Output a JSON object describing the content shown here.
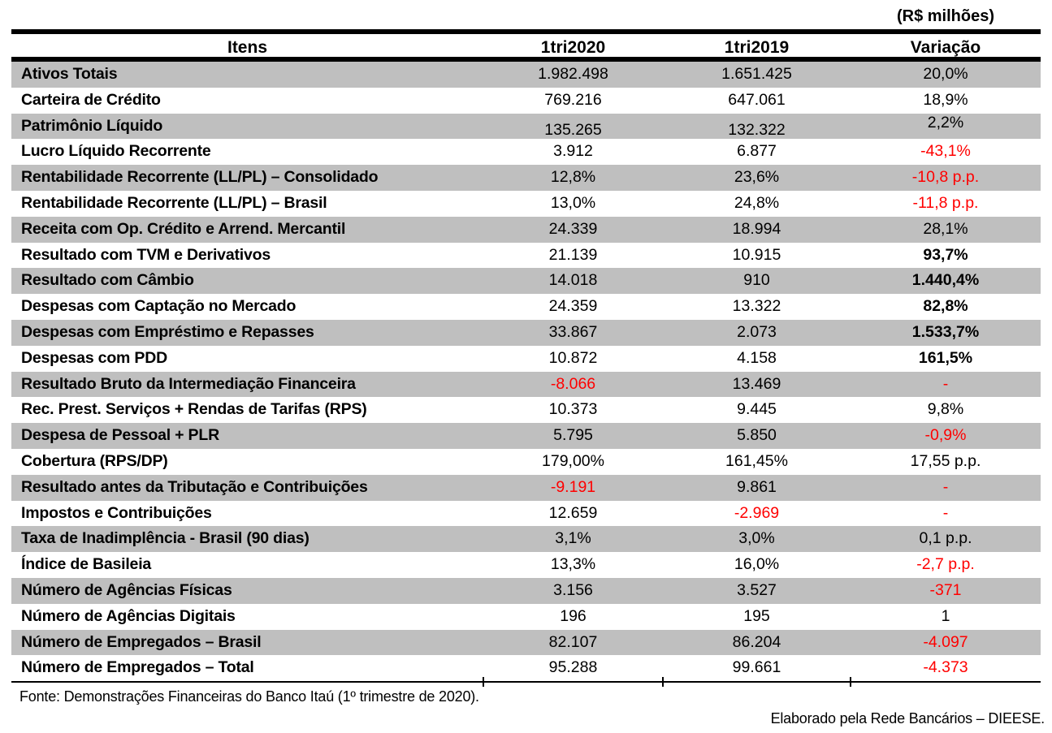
{
  "unit_label": "(R$ milhões)",
  "columns": [
    "Itens",
    "1tri2020",
    "1tri2019",
    "Variação"
  ],
  "colors": {
    "row_shade": "#bfbfbf",
    "negative_red": "#ff0000",
    "text": "#000000"
  },
  "rows": [
    {
      "label": "Ativos Totais",
      "v1": "1.982.498",
      "v2": "1.651.425",
      "var": "20,0%",
      "v1_red": false,
      "v2_red": false,
      "var_red": false,
      "var_bold": false,
      "shaded": true,
      "offset": false
    },
    {
      "label": "Carteira de Crédito",
      "v1": "769.216",
      "v2": "647.061",
      "var": "18,9%",
      "v1_red": false,
      "v2_red": false,
      "var_red": false,
      "var_bold": false,
      "shaded": false,
      "offset": false
    },
    {
      "label": "Patrimônio Líquido",
      "v1": "135.265",
      "v2": "132.322",
      "var": "2,2%",
      "v1_red": false,
      "v2_red": false,
      "var_red": false,
      "var_bold": false,
      "shaded": true,
      "offset": true
    },
    {
      "label": "Lucro Líquido Recorrente",
      "v1": "3.912",
      "v2": "6.877",
      "var": "-43,1%",
      "v1_red": false,
      "v2_red": false,
      "var_red": true,
      "var_bold": false,
      "shaded": false,
      "offset": false
    },
    {
      "label": "Rentabilidade Recorrente (LL/PL) – Consolidado",
      "v1": "12,8%",
      "v2": "23,6%",
      "var": "-10,8 p.p.",
      "v1_red": false,
      "v2_red": false,
      "var_red": true,
      "var_bold": false,
      "shaded": true,
      "offset": false
    },
    {
      "label": "Rentabilidade Recorrente (LL/PL) – Brasil",
      "v1": "13,0%",
      "v2": "24,8%",
      "var": "-11,8 p.p.",
      "v1_red": false,
      "v2_red": false,
      "var_red": true,
      "var_bold": false,
      "shaded": false,
      "offset": false
    },
    {
      "label": "Receita com Op. Crédito e Arrend. Mercantil",
      "v1": "24.339",
      "v2": "18.994",
      "var": "28,1%",
      "v1_red": false,
      "v2_red": false,
      "var_red": false,
      "var_bold": false,
      "shaded": true,
      "offset": false
    },
    {
      "label": "Resultado com TVM e Derivativos",
      "v1": "21.139",
      "v2": "10.915",
      "var": "93,7%",
      "v1_red": false,
      "v2_red": false,
      "var_red": false,
      "var_bold": true,
      "shaded": false,
      "offset": false
    },
    {
      "label": "Resultado com Câmbio",
      "v1": "14.018",
      "v2": "910",
      "var": "1.440,4%",
      "v1_red": false,
      "v2_red": false,
      "var_red": false,
      "var_bold": true,
      "shaded": true,
      "offset": false
    },
    {
      "label": "Despesas com Captação no Mercado",
      "v1": "24.359",
      "v2": "13.322",
      "var": "82,8%",
      "v1_red": false,
      "v2_red": false,
      "var_red": false,
      "var_bold": true,
      "shaded": false,
      "offset": false
    },
    {
      "label": "Despesas com Empréstimo e Repasses",
      "v1": "33.867",
      "v2": "2.073",
      "var": "1.533,7%",
      "v1_red": false,
      "v2_red": false,
      "var_red": false,
      "var_bold": true,
      "shaded": true,
      "offset": false
    },
    {
      "label": "Despesas com PDD",
      "v1": "10.872",
      "v2": "4.158",
      "var": "161,5%",
      "v1_red": false,
      "v2_red": false,
      "var_red": false,
      "var_bold": true,
      "shaded": false,
      "offset": false
    },
    {
      "label": "Resultado Bruto da Intermediação Financeira",
      "v1": "-8.066",
      "v2": "13.469",
      "var": "-",
      "v1_red": true,
      "v2_red": false,
      "var_red": true,
      "var_bold": false,
      "shaded": true,
      "offset": false
    },
    {
      "label": "Rec. Prest. Serviços + Rendas de Tarifas (RPS)",
      "v1": "10.373",
      "v2": "9.445",
      "var": "9,8%",
      "v1_red": false,
      "v2_red": false,
      "var_red": false,
      "var_bold": false,
      "shaded": false,
      "offset": false
    },
    {
      "label": "Despesa de Pessoal + PLR",
      "v1": "5.795",
      "v2": "5.850",
      "var": "-0,9%",
      "v1_red": false,
      "v2_red": false,
      "var_red": true,
      "var_bold": false,
      "shaded": true,
      "offset": false
    },
    {
      "label": "Cobertura (RPS/DP)",
      "v1": "179,00%",
      "v2": "161,45%",
      "var": "17,55 p.p.",
      "v1_red": false,
      "v2_red": false,
      "var_red": false,
      "var_bold": false,
      "shaded": false,
      "offset": false
    },
    {
      "label": "Resultado antes da Tributação e Contribuições",
      "v1": "-9.191",
      "v2": "9.861",
      "var": "-",
      "v1_red": true,
      "v2_red": false,
      "var_red": true,
      "var_bold": false,
      "shaded": true,
      "offset": false
    },
    {
      "label": "Impostos e Contribuições",
      "v1": "12.659",
      "v2": "-2.969",
      "var": "-",
      "v1_red": false,
      "v2_red": true,
      "var_red": true,
      "var_bold": false,
      "shaded": false,
      "offset": false
    },
    {
      "label": "Taxa de Inadimplência - Brasil (90 dias)",
      "v1": "3,1%",
      "v2": "3,0%",
      "var": "0,1 p.p.",
      "v1_red": false,
      "v2_red": false,
      "var_red": false,
      "var_bold": false,
      "shaded": true,
      "offset": false
    },
    {
      "label": "Índice de Basileia",
      "v1": "13,3%",
      "v2": "16,0%",
      "var": "-2,7 p.p.",
      "v1_red": false,
      "v2_red": false,
      "var_red": true,
      "var_bold": false,
      "shaded": false,
      "offset": false
    },
    {
      "label": "Número de Agências Físicas",
      "v1": "3.156",
      "v2": "3.527",
      "var": "-371",
      "v1_red": false,
      "v2_red": false,
      "var_red": true,
      "var_bold": false,
      "shaded": true,
      "offset": false
    },
    {
      "label": "Número de Agências Digitais",
      "v1": "196",
      "v2": "195",
      "var": "1",
      "v1_red": false,
      "v2_red": false,
      "var_red": false,
      "var_bold": false,
      "shaded": false,
      "offset": false
    },
    {
      "label": "Número de Empregados – Brasil",
      "v1": "82.107",
      "v2": "86.204",
      "var": "-4.097",
      "v1_red": false,
      "v2_red": false,
      "var_red": true,
      "var_bold": false,
      "shaded": true,
      "offset": false
    },
    {
      "label": "Número de Empregados – Total",
      "v1": "95.288",
      "v2": "99.661",
      "var": "-4.373",
      "v1_red": false,
      "v2_red": false,
      "var_red": true,
      "var_bold": false,
      "shaded": false,
      "offset": false
    }
  ],
  "footer": {
    "source": "Fonte: Demonstrações Financeiras do Banco Itaú (1º trimestre de 2020).",
    "credit": "Elaborado pela Rede Bancários – DIEESE."
  }
}
